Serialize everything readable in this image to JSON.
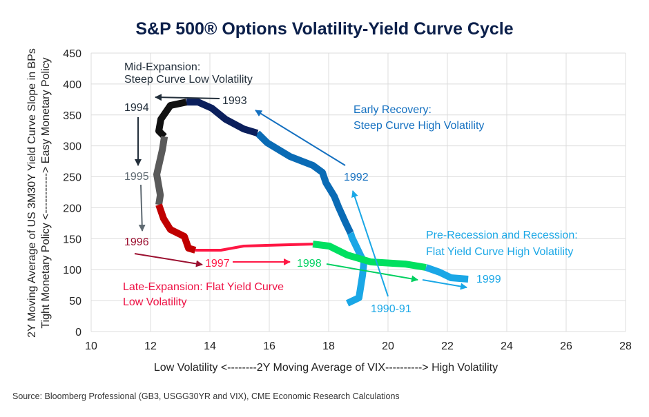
{
  "chart_data": {
    "type": "line",
    "title": "S&P 500® Options Volatility-Yield Curve Cycle",
    "xlabel": "Low Volatility <--------2Y Moving Average of VIX----------> High Volatility",
    "ylabel": "2Y Moving Average of US 3M30Y Yield Curve Slope in BPs",
    "ylabel2": "Tight Monetary Policy <-----------> Easy Monetary Policy",
    "xlim": [
      10,
      28
    ],
    "ylim": [
      0,
      450
    ],
    "xticks": [
      "10",
      "12",
      "14",
      "16",
      "18",
      "20",
      "22",
      "24",
      "26",
      "28"
    ],
    "yticks": [
      "0",
      "50",
      "100",
      "150",
      "200",
      "250",
      "300",
      "350",
      "400",
      "450"
    ],
    "grid": true,
    "source": "Source: Bloomberg Professional (GB3, USGG30YR and VIX), CME Economic Research Calculations",
    "series": [
      {
        "name": "1990-91",
        "color": "#1aa7e6",
        "points": [
          [
            18.63,
            45.7
          ],
          [
            19.02,
            54.6
          ],
          [
            19.14,
            90.2
          ],
          [
            19.19,
            112.5
          ],
          [
            19.07,
            123.6
          ],
          [
            18.79,
            151.4
          ],
          [
            18.74,
            159.2
          ]
        ]
      },
      {
        "name": "1992",
        "color": "#0a6bb5",
        "points": [
          [
            18.56,
            177
          ],
          [
            18.33,
            201.6
          ],
          [
            18.19,
            218.3
          ],
          [
            17.91,
            240.5
          ],
          [
            17.79,
            257.2
          ],
          [
            17.47,
            268.4
          ],
          [
            16.7,
            282.8
          ],
          [
            15.93,
            305.1
          ],
          [
            15.6,
            320.7
          ]
        ]
      },
      {
        "name": "1993",
        "color": "#0b1f5c",
        "points": [
          [
            15.14,
            327.4
          ],
          [
            14.53,
            343
          ],
          [
            14.07,
            360.8
          ],
          [
            13.6,
            370.8
          ],
          [
            13.21,
            370.8
          ]
        ]
      },
      {
        "name": "1994",
        "color": "#111111",
        "points": [
          [
            12.67,
            365.3
          ],
          [
            12.35,
            343
          ],
          [
            12.28,
            324
          ],
          [
            12.47,
            315.1
          ]
        ]
      },
      {
        "name": "1995",
        "color": "#5a5a5a",
        "points": [
          [
            12.4,
            294
          ],
          [
            12.21,
            253.9
          ],
          [
            12.33,
            220.5
          ],
          [
            12.28,
            204.9
          ]
        ]
      },
      {
        "name": "1996",
        "color": "#c00000",
        "points": [
          [
            12.44,
            182.6
          ],
          [
            12.67,
            164.8
          ],
          [
            13.14,
            153.7
          ],
          [
            13.28,
            134.7
          ],
          [
            13.51,
            131.4
          ]
        ]
      },
      {
        "name": "1997",
        "color": "#ff1744",
        "points": [
          [
            14.37,
            131.4
          ],
          [
            15.14,
            138.1
          ],
          [
            16.7,
            140.3
          ],
          [
            17.47,
            141.4
          ]
        ]
      },
      {
        "name": "1998",
        "color": "#00e060",
        "points": [
          [
            18.02,
            138.1
          ],
          [
            18.63,
            123.6
          ],
          [
            19.42,
            112.5
          ],
          [
            20.58,
            109.1
          ],
          [
            21.28,
            103.6
          ]
        ]
      },
      {
        "name": "1999",
        "color": "#1aa7e6",
        "points": [
          [
            21.74,
            95.8
          ],
          [
            22.12,
            86.9
          ],
          [
            22.7,
            84.6
          ]
        ]
      }
    ],
    "annotations": {
      "mid_expansion_1": "Mid-Expansion:",
      "mid_expansion_2": "Steep Curve Low Volatility",
      "early_recovery_1": "Early Recovery:",
      "early_recovery_2": "Steep Curve High Volatility",
      "pre_recession_1": "Pre-Recession and Recession:",
      "pre_recession_2": "Flat Yield Curve High Volatility",
      "late_expansion_1": "Late-Expansion: Flat Yield Curve",
      "late_expansion_2": "Low Volatility",
      "y1990": "1990-91",
      "y1992": "1992",
      "y1993": "1993",
      "y1994": "1994",
      "y1995": "1995",
      "y1996": "1996",
      "y1997": "1997",
      "y1998": "1998",
      "y1999": "1999"
    },
    "colors": {
      "mid": "#222e3a",
      "early": "#1470c0",
      "pre": "#1aa7e6",
      "late": "#ee1144",
      "gray": "#5f6a72",
      "darkred": "#9b1030",
      "green": "#00d060"
    }
  }
}
